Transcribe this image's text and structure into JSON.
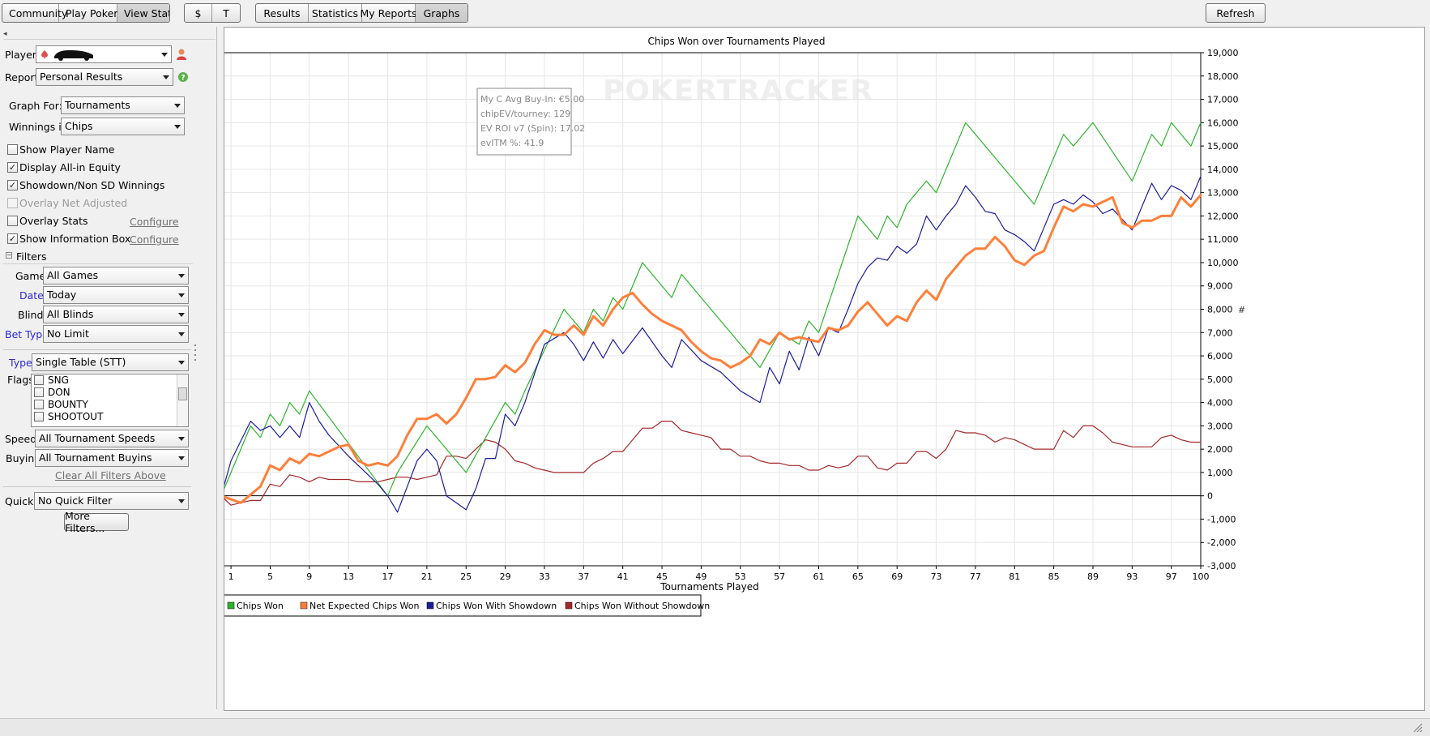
{
  "topbar": {
    "main_tabs": [
      "Community",
      "Play Poker",
      "View Stats"
    ],
    "currency_tabs": [
      "$",
      "T"
    ],
    "view_tabs": [
      "Results",
      "Statistics",
      "My Reports",
      "Graphs"
    ],
    "refresh_label": "Refresh"
  },
  "sidebar": {
    "player_label": "Player:",
    "report_label": "Report:",
    "report_value": "Personal Results",
    "graph_for_label": "Graph For:",
    "graph_for_value": "Tournaments",
    "winnings_in_label": "Winnings in:",
    "winnings_in_value": "Chips",
    "options": [
      {
        "label": "Show Player Name",
        "checked": false,
        "disabled": false
      },
      {
        "label": "Display All-in Equity",
        "checked": true,
        "disabled": false
      },
      {
        "label": "Showdown/Non SD Winnings",
        "checked": true,
        "disabled": false
      },
      {
        "label": "Overlay Net Adjusted",
        "checked": false,
        "disabled": true
      },
      {
        "label": "Overlay Stats",
        "checked": false,
        "disabled": false,
        "link": "Configure"
      },
      {
        "label": "Show Information Box",
        "checked": true,
        "disabled": false,
        "link": "Configure"
      }
    ],
    "filters_header": "Filters",
    "filters": {
      "game_label": "Game:",
      "game_value": "All Games",
      "date_label": "Date:",
      "date_value": "Today",
      "blind_label": "Blind:",
      "blind_value": "All Blinds",
      "bet_type_label": "Bet Type:",
      "bet_type_value": "No Limit",
      "type_label": "Type:",
      "type_value": "Single Table (STT)",
      "flags_label": "Flags:",
      "flags": [
        "SNG",
        "DON",
        "BOUNTY",
        "SHOOTOUT"
      ],
      "speed_label": "Speed:",
      "speed_value": "All Tournament Speeds",
      "buyin_label": "Buyin:",
      "buyin_value": "All Tournament Buyins",
      "clear_all": "Clear All Filters Above",
      "quick_label": "Quick:",
      "quick_value": "No Quick Filter",
      "more_filters": "More Filters..."
    }
  },
  "info_box": [
    "My C Avg Buy-In: €5.00",
    "chipEV/tourney: 129",
    "EV ROI v7 (Spin): 17.02",
    "evITM %: 41.9"
  ],
  "watermark": "POKERTRACKER",
  "colors": {
    "chips_won": "#2db42d",
    "net_expected": "#ff7f3a",
    "showdown": "#1c1c9c",
    "without_showdown": "#a52828"
  },
  "chart_data": {
    "type": "line",
    "title": "Chips Won over Tournaments Played",
    "xlabel": "Tournaments Played",
    "ylabel": "",
    "xlim": [
      0,
      100
    ],
    "ylim": [
      -3000,
      19000
    ],
    "x_ticks": [
      1,
      5,
      9,
      13,
      17,
      21,
      25,
      29,
      33,
      37,
      41,
      45,
      49,
      53,
      57,
      61,
      65,
      69,
      73,
      77,
      81,
      85,
      89,
      93,
      97,
      100
    ],
    "y_ticks": [
      -3000,
      -2000,
      -1000,
      0,
      1000,
      2000,
      3000,
      4000,
      5000,
      6000,
      7000,
      8000,
      9000,
      10000,
      11000,
      12000,
      13000,
      14000,
      15000,
      16000,
      17000,
      18000,
      19000
    ],
    "y_tick_labels": [
      "-3,000",
      "-2,000",
      "-1,000",
      "0",
      "1,000",
      "2,000",
      "3,000",
      "4,000",
      "5,000",
      "6,000",
      "7,000",
      "8,000",
      "9,000",
      "10,000",
      "11,000",
      "12,000",
      "13,000",
      "14,000",
      "15,000",
      "16,000",
      "17,000",
      "18,000",
      "19,000"
    ],
    "y_axis_marker": "#",
    "grid": true,
    "legend_position": "bottom-left",
    "series": [
      {
        "name": "Chips Won",
        "color": "#2db42d",
        "x": [
          0,
          3,
          4,
          5,
          6,
          7,
          8,
          9,
          17,
          18,
          21,
          25,
          29,
          30,
          31,
          35,
          36,
          37,
          38,
          39,
          40,
          41,
          43,
          46,
          47,
          55,
          57,
          59,
          60,
          61,
          65,
          67,
          68,
          69,
          70,
          72,
          73,
          76,
          83,
          86,
          87,
          89,
          93,
          95,
          96,
          97,
          99,
          100
        ],
        "y": [
          0,
          3000,
          2500,
          3500,
          3000,
          4000,
          3500,
          4500,
          0,
          1000,
          3000,
          1000,
          4000,
          3500,
          4500,
          8000,
          7500,
          7000,
          8000,
          7500,
          8500,
          8000,
          10000,
          8500,
          9500,
          5500,
          7000,
          6500,
          7500,
          7000,
          12000,
          11000,
          12000,
          11500,
          12500,
          13500,
          13000,
          16000,
          12500,
          15500,
          15000,
          16000,
          13500,
          15500,
          15000,
          16000,
          15000,
          16000
        ]
      },
      {
        "name": "Net Expected Chips Won",
        "color": "#ff7f3a",
        "x": [
          0,
          2,
          4,
          5,
          6,
          7,
          8,
          9,
          10,
          11,
          12,
          13,
          14,
          15,
          16,
          17,
          18,
          19,
          20,
          21,
          22,
          23,
          24,
          25,
          26,
          27,
          28,
          29,
          30,
          31,
          32,
          33,
          34,
          35,
          36,
          37,
          38,
          39,
          40,
          41,
          42,
          43,
          44,
          45,
          46,
          47,
          48,
          49,
          50,
          51,
          52,
          53,
          54,
          55,
          56,
          57,
          58,
          59,
          60,
          61,
          62,
          63,
          64,
          65,
          66,
          67,
          68,
          69,
          70,
          71,
          72,
          73,
          74,
          75,
          76,
          77,
          78,
          79,
          80,
          81,
          82,
          83,
          84,
          85,
          86,
          87,
          88,
          89,
          90,
          91,
          92,
          93,
          94,
          95,
          96,
          97,
          98,
          99,
          100
        ],
        "y": [
          0,
          -300,
          400,
          1300,
          1100,
          1600,
          1400,
          1800,
          1700,
          1900,
          2100,
          2200,
          1500,
          1300,
          1400,
          1300,
          1700,
          2600,
          3300,
          3300,
          3500,
          3100,
          3500,
          4200,
          5000,
          5000,
          5100,
          5600,
          5300,
          5700,
          6500,
          7100,
          6900,
          6900,
          7300,
          6900,
          7700,
          7300,
          8000,
          8500,
          8700,
          8200,
          7800,
          7500,
          7300,
          7100,
          6600,
          6200,
          5900,
          5800,
          5500,
          5700,
          6000,
          6700,
          6500,
          7000,
          6700,
          6800,
          6700,
          6600,
          7200,
          7100,
          7300,
          7900,
          8300,
          7800,
          7300,
          7700,
          7500,
          8300,
          8800,
          8400,
          9300,
          9800,
          10300,
          10600,
          10600,
          11100,
          10700,
          10100,
          9900,
          10300,
          10500,
          11500,
          12400,
          12200,
          12500,
          12400,
          12600,
          12800,
          11700,
          11500,
          11800,
          11800,
          12000,
          12000,
          12800,
          12400,
          12900
        ]
      },
      {
        "name": "Chips Won With Showdown",
        "color": "#1c1c9c",
        "x": [
          0,
          1,
          3,
          4,
          5,
          6,
          7,
          8,
          9,
          10,
          11,
          13,
          15,
          16,
          17,
          18,
          20,
          21,
          22,
          23,
          25,
          26,
          27,
          28,
          29,
          30,
          31,
          33,
          35,
          36,
          37,
          38,
          39,
          40,
          41,
          43,
          45,
          46,
          47,
          49,
          51,
          53,
          55,
          56,
          57,
          58,
          59,
          60,
          61,
          62,
          63,
          64,
          65,
          66,
          67,
          68,
          69,
          70,
          71,
          72,
          73,
          74,
          75,
          76,
          77,
          78,
          79,
          80,
          81,
          82,
          83,
          84,
          85,
          86,
          87,
          88,
          89,
          90,
          91,
          93,
          95,
          96,
          97,
          98,
          99,
          100
        ],
        "y": [
          0,
          1500,
          3200,
          2800,
          3000,
          2500,
          3000,
          2500,
          4000,
          3200,
          2600,
          1700,
          900,
          500,
          0,
          -700,
          1500,
          2000,
          1500,
          0,
          -600,
          300,
          1600,
          1600,
          3500,
          3000,
          4000,
          6500,
          7000,
          6500,
          5800,
          6600,
          5900,
          6700,
          6100,
          7200,
          6000,
          5500,
          6700,
          5800,
          5300,
          4500,
          4000,
          5500,
          4800,
          6200,
          5400,
          6800,
          6000,
          7200,
          7000,
          8000,
          9100,
          9800,
          10200,
          10100,
          10700,
          10400,
          10800,
          12000,
          11400,
          12000,
          12500,
          13300,
          12800,
          12200,
          12100,
          11400,
          11200,
          10900,
          10500,
          11500,
          12500,
          12700,
          12500,
          12900,
          12600,
          12100,
          12300,
          11400,
          13400,
          12700,
          13300,
          13100,
          12700,
          13700
        ]
      },
      {
        "name": "Chips Won Without Showdown",
        "color": "#a52828",
        "x": [
          0,
          1,
          2,
          3,
          4,
          5,
          6,
          7,
          8,
          9,
          10,
          11,
          12,
          13,
          14,
          15,
          16,
          17,
          18,
          19,
          20,
          21,
          22,
          23,
          24,
          25,
          26,
          27,
          28,
          29,
          30,
          31,
          32,
          33,
          34,
          35,
          36,
          37,
          38,
          39,
          40,
          41,
          42,
          43,
          44,
          45,
          46,
          47,
          48,
          49,
          50,
          51,
          52,
          53,
          54,
          55,
          56,
          57,
          58,
          59,
          60,
          61,
          62,
          63,
          64,
          65,
          66,
          67,
          68,
          69,
          70,
          71,
          72,
          73,
          74,
          75,
          76,
          77,
          78,
          79,
          80,
          81,
          82,
          83,
          84,
          85,
          86,
          87,
          88,
          89,
          90,
          91,
          92,
          93,
          94,
          95,
          96,
          97,
          98,
          99,
          100
        ],
        "y": [
          0,
          -400,
          -300,
          -200,
          -200,
          500,
          400,
          900,
          800,
          600,
          800,
          700,
          700,
          700,
          600,
          600,
          600,
          700,
          800,
          800,
          700,
          800,
          900,
          1700,
          1700,
          1600,
          2000,
          2400,
          2300,
          2000,
          1500,
          1400,
          1200,
          1100,
          1000,
          1000,
          1000,
          1000,
          1400,
          1600,
          1900,
          1900,
          2400,
          2900,
          2900,
          3200,
          3200,
          2800,
          2700,
          2600,
          2500,
          2000,
          2000,
          1700,
          1700,
          1500,
          1400,
          1400,
          1300,
          1300,
          1100,
          1100,
          1300,
          1200,
          1300,
          1700,
          1700,
          1200,
          1100,
          1400,
          1400,
          1900,
          1900,
          1600,
          2000,
          2800,
          2700,
          2700,
          2600,
          2300,
          2500,
          2400,
          2200,
          2000,
          2000,
          2000,
          2800,
          2500,
          3000,
          3000,
          2700,
          2300,
          2200,
          2100,
          2100,
          2100,
          2500,
          2600,
          2400,
          2300,
          2300
        ]
      }
    ]
  }
}
